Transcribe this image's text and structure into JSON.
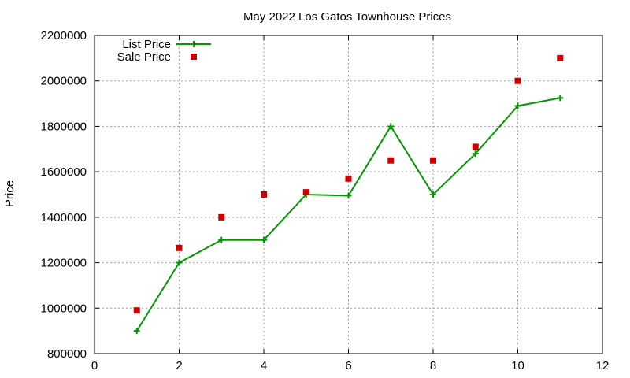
{
  "chart_data": {
    "type": "line",
    "title": "May 2022 Los Gatos Townhouse Prices",
    "xlabel": "",
    "ylabel": "Price",
    "xlim": [
      0,
      12
    ],
    "ylim": [
      800000,
      2200000
    ],
    "xticks": [
      0,
      2,
      4,
      6,
      8,
      10,
      12
    ],
    "yticks": [
      800000,
      1000000,
      1200000,
      1400000,
      1600000,
      1800000,
      2000000,
      2200000
    ],
    "grid": true,
    "legend_position": "top-left",
    "series": [
      {
        "name": "List Price",
        "style": "line-with-plus-markers",
        "color": "#009900",
        "x": [
          1,
          2,
          3,
          4,
          5,
          6,
          7,
          8,
          9,
          10,
          11
        ],
        "y": [
          900000,
          1200000,
          1300000,
          1300000,
          1500000,
          1495000,
          1800000,
          1500000,
          1680000,
          1890000,
          1925000
        ]
      },
      {
        "name": "Sale Price",
        "style": "square-markers",
        "color": "#cc0000",
        "x": [
          1,
          2,
          3,
          4,
          5,
          6,
          7,
          8,
          9,
          10,
          11
        ],
        "y": [
          990000,
          1265000,
          1400000,
          1500000,
          1510000,
          1570000,
          1650000,
          1650000,
          1710000,
          2000000,
          2100000
        ]
      }
    ]
  }
}
